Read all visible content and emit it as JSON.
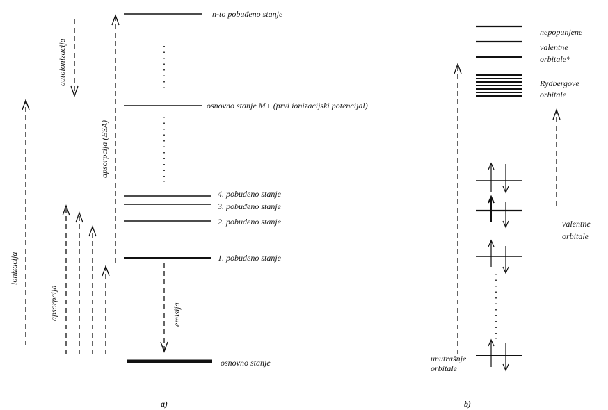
{
  "panel_a": {
    "caption": "a)",
    "levels": {
      "n_to": "n-to pobuđeno stanje",
      "ion": "osnovno stanje M+ (prvi ionizacijski potencijal)",
      "s4": "4. pobuđeno stanje",
      "s3": "3. pobuđeno stanje",
      "s2": "2. pobuđeno stanje",
      "s1": "1. pobuđeno stanje",
      "ground": "osnovno stanje"
    },
    "arrows": {
      "autoionizacija": "autoionizacija",
      "ionizacija": "ionizacija",
      "apsorpcija_esa": "apsorpcija (ESA)",
      "apsorpcija": "apsorpcija",
      "emisija": "emisija"
    }
  },
  "panel_b": {
    "caption": "b)",
    "labels": {
      "nepopunjene_1": "nepopunjene",
      "nepopunjene_2": "valentne",
      "nepopunjene_3": "orbitale*",
      "rydberg_1": "Rydbergove",
      "rydberg_2": "orbitale",
      "valentne_1": "valentne",
      "valentne_2": "orbitale",
      "unutrasnje_1": "unutrašnje",
      "unutrasnje_2": "orbitale"
    }
  }
}
